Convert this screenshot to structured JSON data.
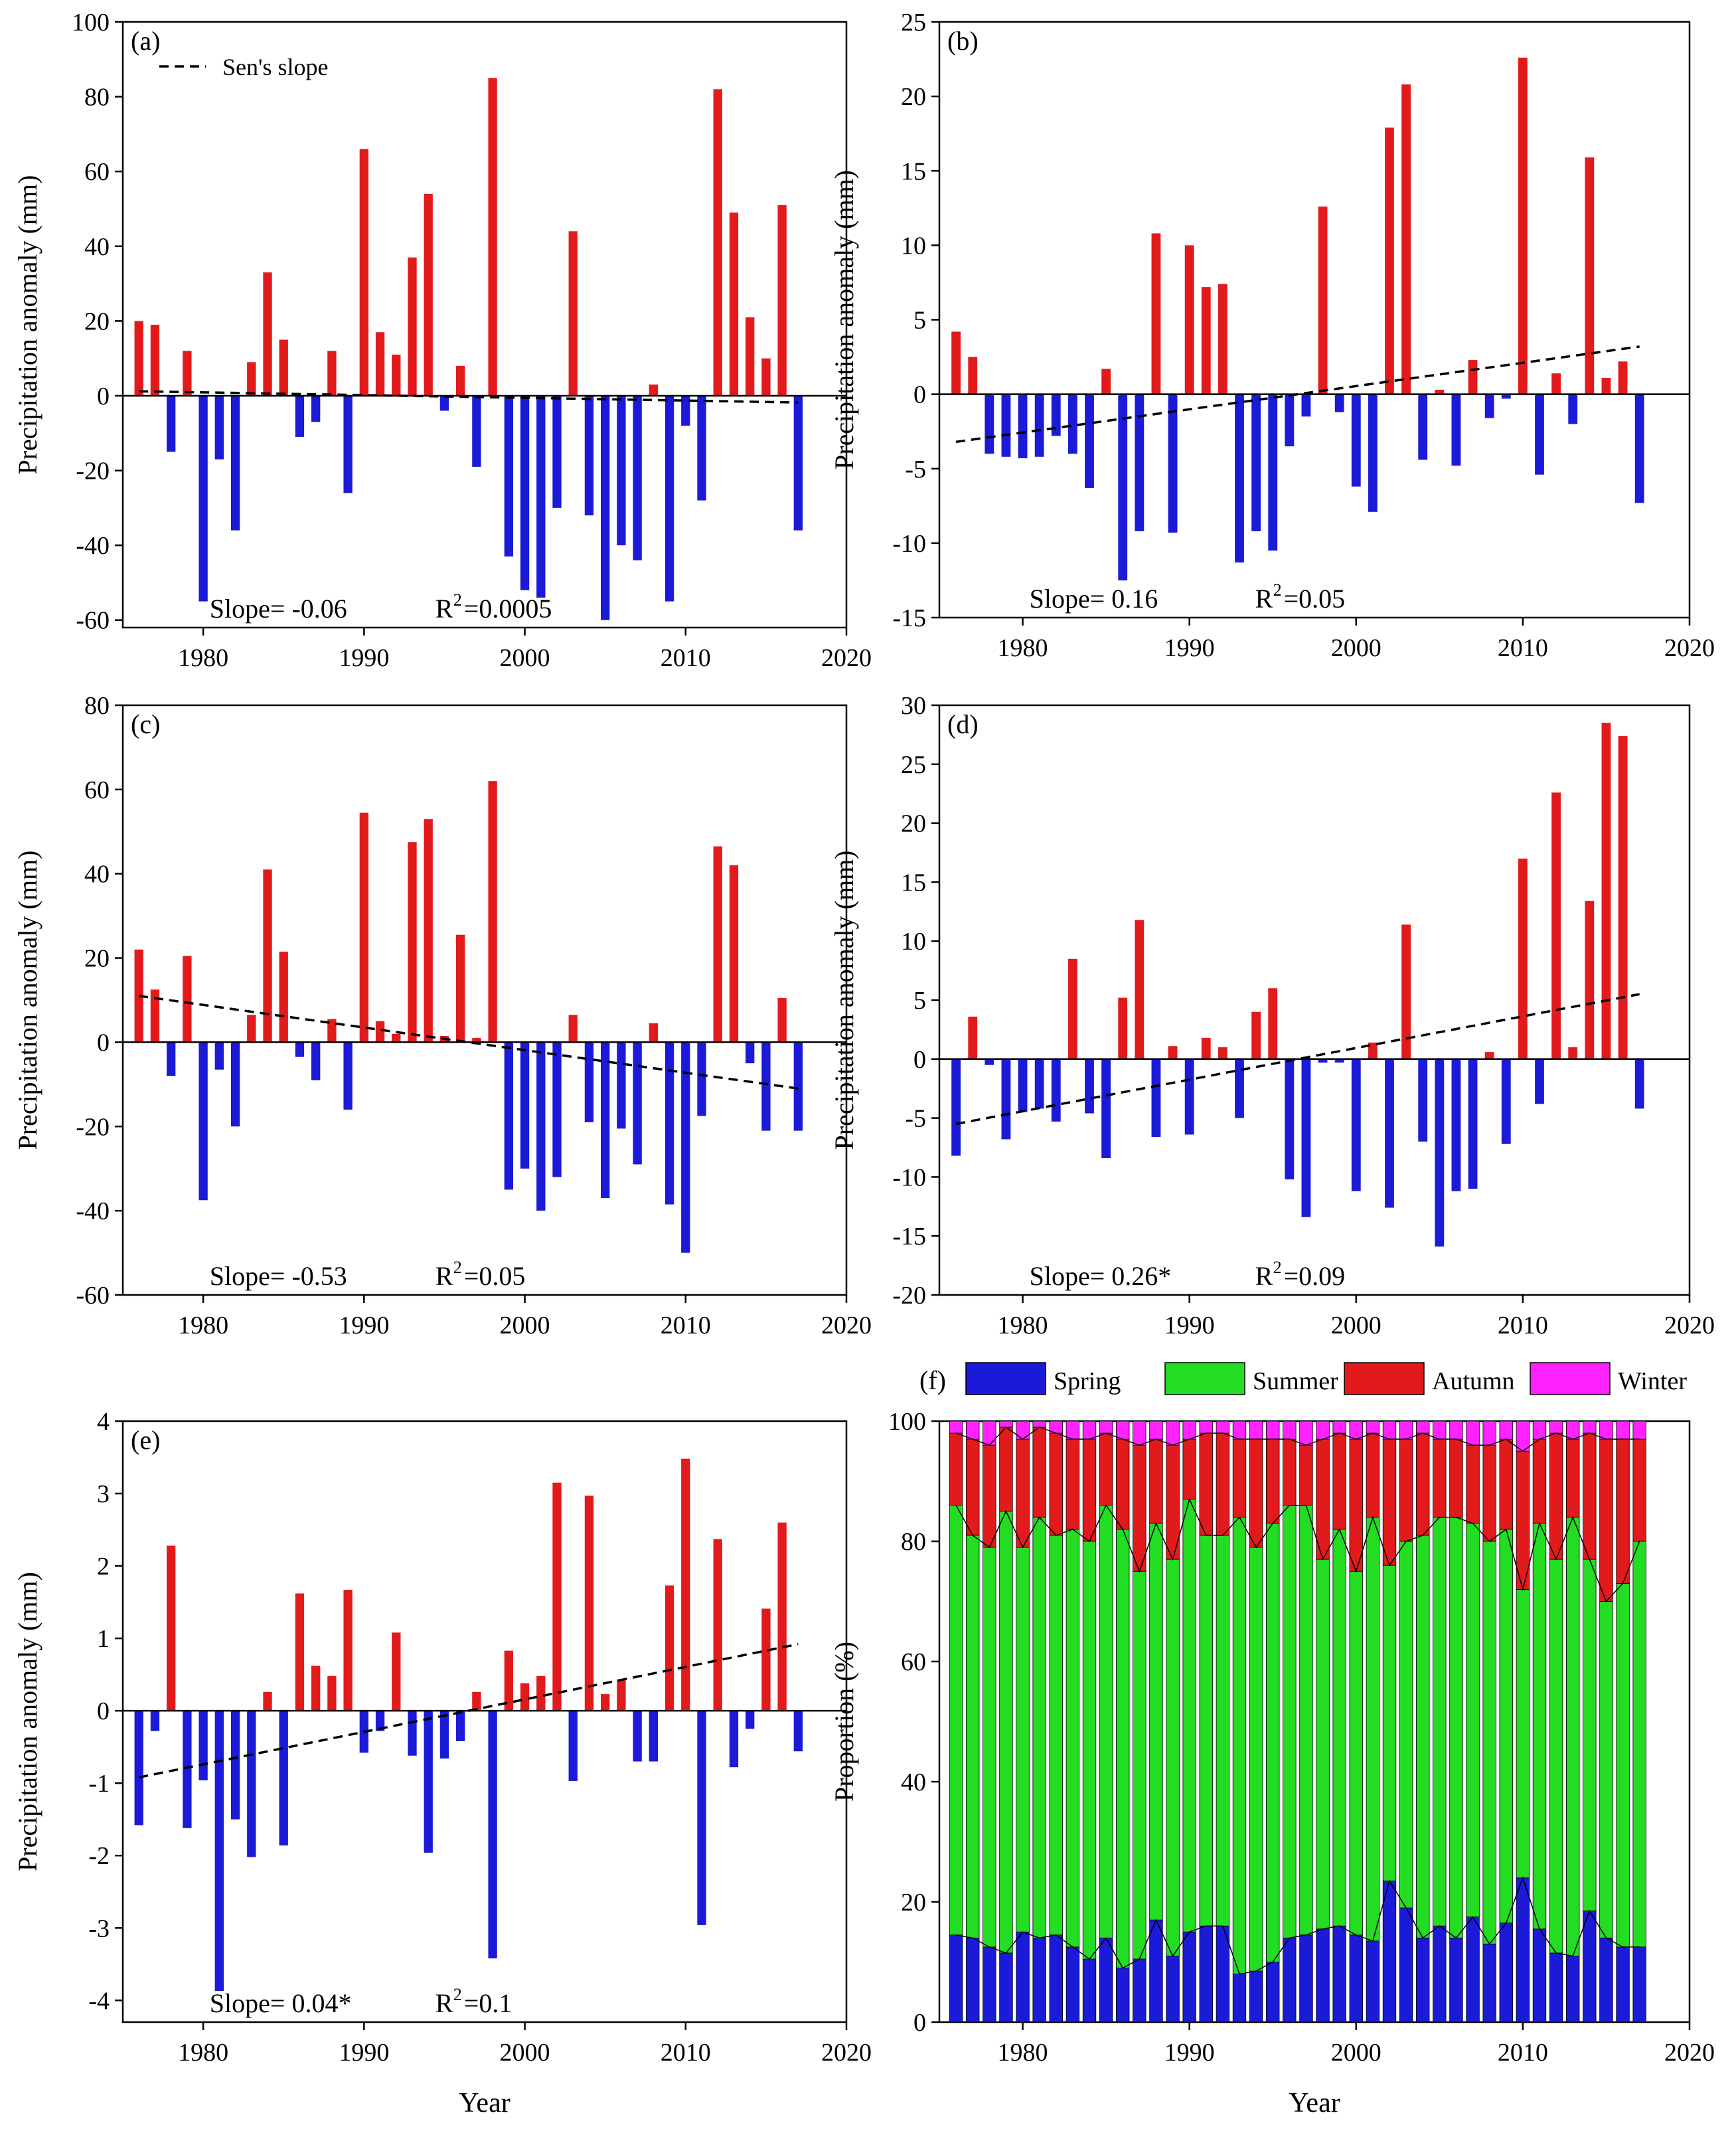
{
  "figure": {
    "xlabel_bottom": "Year",
    "colors": {
      "positive": "#e31a1c",
      "negative": "#1a1ad8",
      "trend": "#000000",
      "spring": "#1a1ad8",
      "summer": "#22dd22",
      "autumn": "#e31a1c",
      "winter": "#ff22ff"
    }
  },
  "chart_data": [
    {
      "type": "bar",
      "panel": "(a)",
      "ylabel": "Precipitation anomaly (mm)",
      "xlabel": "",
      "xlim": [
        1975,
        2020
      ],
      "xticks": [
        "1980",
        "1990",
        "2000",
        "2010",
        "2020"
      ],
      "ylim": [
        -62,
        100
      ],
      "yticks": [
        "100",
        "80",
        "60",
        "40",
        "20",
        "0",
        "-20",
        "-40",
        "-60"
      ],
      "legend": "Sen's slope",
      "stats_slope": "Slope= -0.06",
      "stats_r2": "R",
      "stats_r2_sup": "2",
      "stats_r2_value": "=0.0005",
      "trend_line": {
        "x": [
          1976,
          2017
        ],
        "y": [
          1.2,
          -1.8
        ]
      },
      "years": [
        1976,
        1977,
        1978,
        1979,
        1980,
        1981,
        1982,
        1983,
        1984,
        1985,
        1986,
        1987,
        1988,
        1989,
        1990,
        1991,
        1992,
        1993,
        1994,
        1995,
        1996,
        1997,
        1998,
        1999,
        2000,
        2001,
        2002,
        2003,
        2004,
        2005,
        2006,
        2007,
        2008,
        2009,
        2010,
        2011,
        2012,
        2013,
        2014,
        2015,
        2016,
        2017
      ],
      "values": [
        20,
        19,
        -15,
        12,
        -55,
        -17,
        -36,
        9,
        33,
        15,
        -11,
        -7,
        12,
        -26,
        66,
        17,
        11,
        37,
        54,
        -4,
        8,
        -19,
        85,
        -43,
        -52,
        -54,
        -30,
        44,
        -32,
        -60,
        -40,
        -44,
        3,
        -55,
        -8,
        -28,
        82,
        49,
        21,
        10,
        51,
        -36
      ]
    },
    {
      "type": "bar",
      "panel": "(b)",
      "ylabel": "Precipitation anomaly (mm)",
      "xlabel": "",
      "xlim": [
        1975,
        2020
      ],
      "xticks": [
        "1980",
        "1990",
        "2000",
        "2010",
        "2020"
      ],
      "ylim": [
        -15,
        25
      ],
      "yticks": [
        "25",
        "20",
        "15",
        "10",
        "5",
        "0",
        "-5",
        "-10",
        "-15"
      ],
      "stats_slope": "Slope= 0.16",
      "stats_r2": "R",
      "stats_r2_sup": "2",
      "stats_r2_value": "=0.05",
      "trend_line": {
        "x": [
          1976,
          2017
        ],
        "y": [
          -3.2,
          3.2
        ]
      },
      "years": [
        1976,
        1977,
        1978,
        1979,
        1980,
        1981,
        1982,
        1983,
        1984,
        1985,
        1986,
        1987,
        1988,
        1989,
        1990,
        1991,
        1992,
        1993,
        1994,
        1995,
        1996,
        1997,
        1998,
        1999,
        2000,
        2001,
        2002,
        2003,
        2004,
        2005,
        2006,
        2007,
        2008,
        2009,
        2010,
        2011,
        2012,
        2013,
        2014,
        2015,
        2016,
        2017
      ],
      "values": [
        4.2,
        2.5,
        -4.0,
        -4.2,
        -4.3,
        -4.2,
        -2.8,
        -4.0,
        -6.3,
        1.7,
        -12.5,
        -9.2,
        10.8,
        -9.3,
        10.0,
        7.2,
        7.4,
        -11.3,
        -9.2,
        -10.5,
        -3.5,
        -1.5,
        12.6,
        -1.2,
        -6.2,
        -7.9,
        17.9,
        20.8,
        -4.4,
        0.3,
        -4.8,
        2.3,
        -1.6,
        -0.3,
        22.6,
        -5.4,
        1.4,
        -2.0,
        15.9,
        1.1,
        2.2,
        -7.3
      ]
    },
    {
      "type": "bar",
      "panel": "(c)",
      "ylabel": "Precipitation anomaly (mm)",
      "xlabel": "",
      "xlim": [
        1975,
        2020
      ],
      "xticks": [
        "1980",
        "1990",
        "2000",
        "2010",
        "2020"
      ],
      "ylim": [
        -60,
        80
      ],
      "yticks": [
        "80",
        "60",
        "40",
        "20",
        "0",
        "-20",
        "-40",
        "-60"
      ],
      "stats_slope": "Slope= -0.53",
      "stats_r2": "R",
      "stats_r2_sup": "2",
      "stats_r2_value": "=0.05",
      "trend_line": {
        "x": [
          1976,
          2017
        ],
        "y": [
          11,
          -11
        ]
      },
      "years": [
        1976,
        1977,
        1978,
        1979,
        1980,
        1981,
        1982,
        1983,
        1984,
        1985,
        1986,
        1987,
        1988,
        1989,
        1990,
        1991,
        1992,
        1993,
        1994,
        1995,
        1996,
        1997,
        1998,
        1999,
        2000,
        2001,
        2002,
        2003,
        2004,
        2005,
        2006,
        2007,
        2008,
        2009,
        2010,
        2011,
        2012,
        2013,
        2014,
        2015,
        2016,
        2017
      ],
      "values": [
        22,
        12.5,
        -8,
        20.5,
        -37.5,
        -6.5,
        -20,
        6.5,
        41,
        21.5,
        -3.5,
        -9,
        5.5,
        -16,
        54.5,
        5,
        2,
        47.5,
        53,
        1.5,
        25.5,
        1,
        62,
        -35,
        -30,
        -40,
        -32,
        6.5,
        -19,
        -37,
        -20.5,
        -29,
        4.5,
        -38.5,
        -50,
        -17.5,
        46.5,
        42,
        -5,
        -21,
        10.5,
        -21
      ]
    },
    {
      "type": "bar",
      "panel": "(d)",
      "ylabel": "Precipitation anomaly (mm)",
      "xlabel": "",
      "xlim": [
        1975,
        2020
      ],
      "xticks": [
        "1980",
        "1990",
        "2000",
        "2010",
        "2020"
      ],
      "ylim": [
        -20,
        30
      ],
      "yticks": [
        "30",
        "25",
        "20",
        "15",
        "10",
        "5",
        "0",
        "-5",
        "-10",
        "-15",
        "-20"
      ],
      "stats_slope": "Slope= 0.26*",
      "stats_r2": "R",
      "stats_r2_sup": "2",
      "stats_r2_value": "=0.09",
      "trend_line": {
        "x": [
          1976,
          2017
        ],
        "y": [
          -5.5,
          5.5
        ]
      },
      "years": [
        1976,
        1977,
        1978,
        1979,
        1980,
        1981,
        1982,
        1983,
        1984,
        1985,
        1986,
        1987,
        1988,
        1989,
        1990,
        1991,
        1992,
        1993,
        1994,
        1995,
        1996,
        1997,
        1998,
        1999,
        2000,
        2001,
        2002,
        2003,
        2004,
        2005,
        2006,
        2007,
        2008,
        2009,
        2010,
        2011,
        2012,
        2013,
        2014,
        2015,
        2016,
        2017
      ],
      "values": [
        -8.2,
        3.6,
        -0.5,
        -6.8,
        -4.5,
        -4.2,
        -5.3,
        8.5,
        -4.6,
        -8.4,
        5.2,
        11.8,
        -6.6,
        1.1,
        -6.4,
        1.8,
        1.0,
        -5.0,
        4.0,
        6.0,
        -10.2,
        -13.4,
        -0.3,
        -0.3,
        -11.2,
        1.4,
        -12.6,
        11.4,
        -7.0,
        -15.9,
        -11.2,
        -11.0,
        0.6,
        -7.2,
        17.0,
        -3.8,
        22.6,
        1.0,
        13.4,
        28.5,
        27.4,
        -4.2
      ]
    },
    {
      "type": "bar",
      "panel": "(e)",
      "ylabel": "Precipitation anomaly (mm)",
      "xlabel": "Year",
      "xlim": [
        1975,
        2020
      ],
      "xticks": [
        "1980",
        "1990",
        "2000",
        "2010",
        "2020"
      ],
      "ylim": [
        -4.3,
        4
      ],
      "yticks": [
        "4",
        "3",
        "2",
        "1",
        "0",
        "-1",
        "-2",
        "-3",
        "-4"
      ],
      "stats_slope": "Slope= 0.04*",
      "stats_r2": "R",
      "stats_r2_sup": "2",
      "stats_r2_value": "=0.1",
      "trend_line": {
        "x": [
          1976,
          2017
        ],
        "y": [
          -0.92,
          0.92
        ]
      },
      "years": [
        1976,
        1977,
        1978,
        1979,
        1980,
        1981,
        1982,
        1983,
        1984,
        1985,
        1986,
        1987,
        1988,
        1989,
        1990,
        1991,
        1992,
        1993,
        1994,
        1995,
        1996,
        1997,
        1998,
        1999,
        2000,
        2001,
        2002,
        2003,
        2004,
        2005,
        2006,
        2007,
        2008,
        2009,
        2010,
        2011,
        2012,
        2013,
        2014,
        2015,
        2016,
        2017
      ],
      "values": [
        -1.58,
        -0.28,
        2.28,
        -1.62,
        -0.96,
        -3.87,
        -1.5,
        -2.02,
        0.26,
        -1.86,
        1.62,
        0.62,
        0.48,
        1.67,
        -0.58,
        -0.28,
        1.08,
        -0.62,
        -1.96,
        -0.66,
        -0.42,
        0.26,
        -3.42,
        0.83,
        0.38,
        0.48,
        3.15,
        -0.97,
        2.97,
        0.23,
        0.43,
        -0.7,
        -0.7,
        1.73,
        3.48,
        -2.96,
        2.37,
        -0.78,
        -0.25,
        1.41,
        2.6,
        -0.56
      ]
    },
    {
      "type": "bar",
      "stacked": true,
      "panel": "(f)",
      "ylabel": "Proportion (%)",
      "xlabel": "Year",
      "xlim": [
        1975,
        2020
      ],
      "xticks": [
        "1980",
        "1990",
        "2000",
        "2010",
        "2020"
      ],
      "ylim": [
        0,
        100
      ],
      "yticks": [
        "100",
        "80",
        "60",
        "40",
        "20",
        "0"
      ],
      "legend": [
        "Spring",
        "Summer",
        "Autumn",
        "Winter"
      ],
      "years": [
        1976,
        1977,
        1978,
        1979,
        1980,
        1981,
        1982,
        1983,
        1984,
        1985,
        1986,
        1987,
        1988,
        1989,
        1990,
        1991,
        1992,
        1993,
        1994,
        1995,
        1996,
        1997,
        1998,
        1999,
        2000,
        2001,
        2002,
        2003,
        2004,
        2005,
        2006,
        2007,
        2008,
        2009,
        2010,
        2011,
        2012,
        2013,
        2014,
        2015,
        2016,
        2017
      ],
      "spring_cum": [
        14.5,
        14,
        12.5,
        11.5,
        15,
        14,
        14.5,
        12.5,
        10.5,
        14,
        9,
        10.5,
        17,
        11,
        15,
        16,
        16,
        8,
        8.5,
        10,
        14,
        14.5,
        15.5,
        16,
        14.5,
        13.5,
        23.5,
        19,
        14,
        16,
        14,
        17.5,
        13,
        16.5,
        24,
        15.5,
        11.5,
        11,
        18.5,
        14,
        12.5,
        12.5
      ],
      "summer_cum": [
        86,
        81,
        79,
        85,
        79,
        84,
        81,
        82,
        80,
        86,
        82,
        75,
        83,
        77,
        87,
        81,
        81,
        84,
        79,
        83,
        86,
        86,
        77,
        82,
        75,
        84,
        76,
        80,
        81,
        84,
        84,
        83,
        80,
        82,
        72,
        83,
        77,
        84,
        77,
        70,
        73,
        80
      ],
      "autumn_cum": [
        98,
        97,
        96,
        99,
        97,
        99,
        98,
        97,
        97,
        98,
        97,
        96,
        97,
        96,
        97,
        98,
        98,
        97,
        97,
        97,
        97,
        96,
        97,
        98,
        97,
        98,
        97,
        97,
        98,
        97,
        97,
        96,
        96,
        97,
        95,
        97,
        98,
        97,
        98,
        97,
        97,
        97
      ]
    }
  ]
}
